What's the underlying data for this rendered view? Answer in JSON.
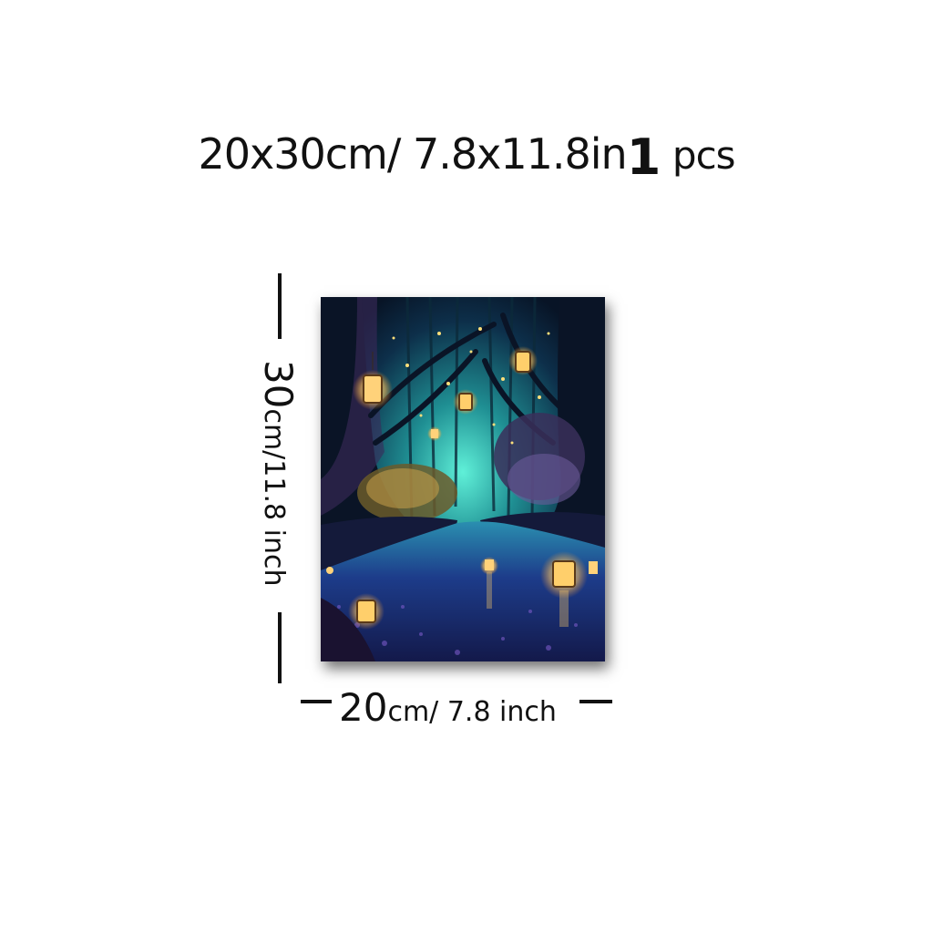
{
  "headline": {
    "size": "20x30cm/ 7.8x11.8in",
    "quantity": "1",
    "unit": "pcs"
  },
  "dimensions": {
    "height_value": "30",
    "height_unit": "cm/11.8 inch",
    "width_value": "20",
    "width_unit": "cm/ 7.8 inch"
  },
  "artwork": {
    "subject": "forest-river-lanterns",
    "colors": {
      "sky": "#0e3a4f",
      "glow": "#3fd6c4",
      "water": "#1c2f7a",
      "lantern": "#ffcf6b",
      "trees": "#0a1426",
      "foliage": "#c9a04a"
    }
  }
}
